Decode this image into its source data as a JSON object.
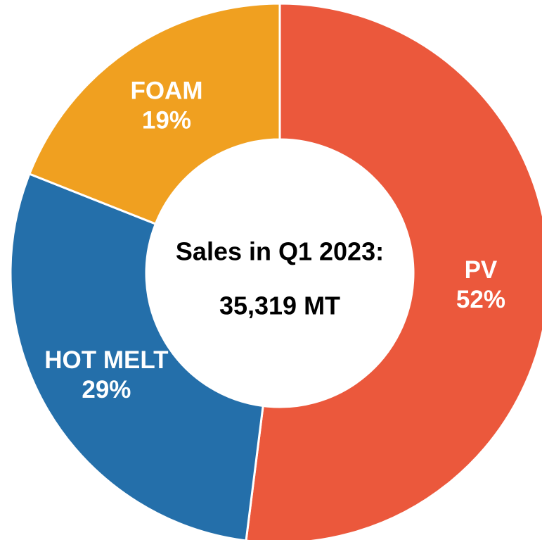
{
  "chart_data": {
    "type": "donut",
    "categories": [
      "PV",
      "HOT MELT",
      "FOAM"
    ],
    "values": [
      52,
      29,
      19
    ],
    "value_labels": [
      "52%",
      "29%",
      "19%"
    ],
    "colors": [
      "#EB583C",
      "#246FAA",
      "#F0A020"
    ],
    "annotations": [
      "Sales in Q1 2023:",
      "35,319 MT"
    ]
  }
}
